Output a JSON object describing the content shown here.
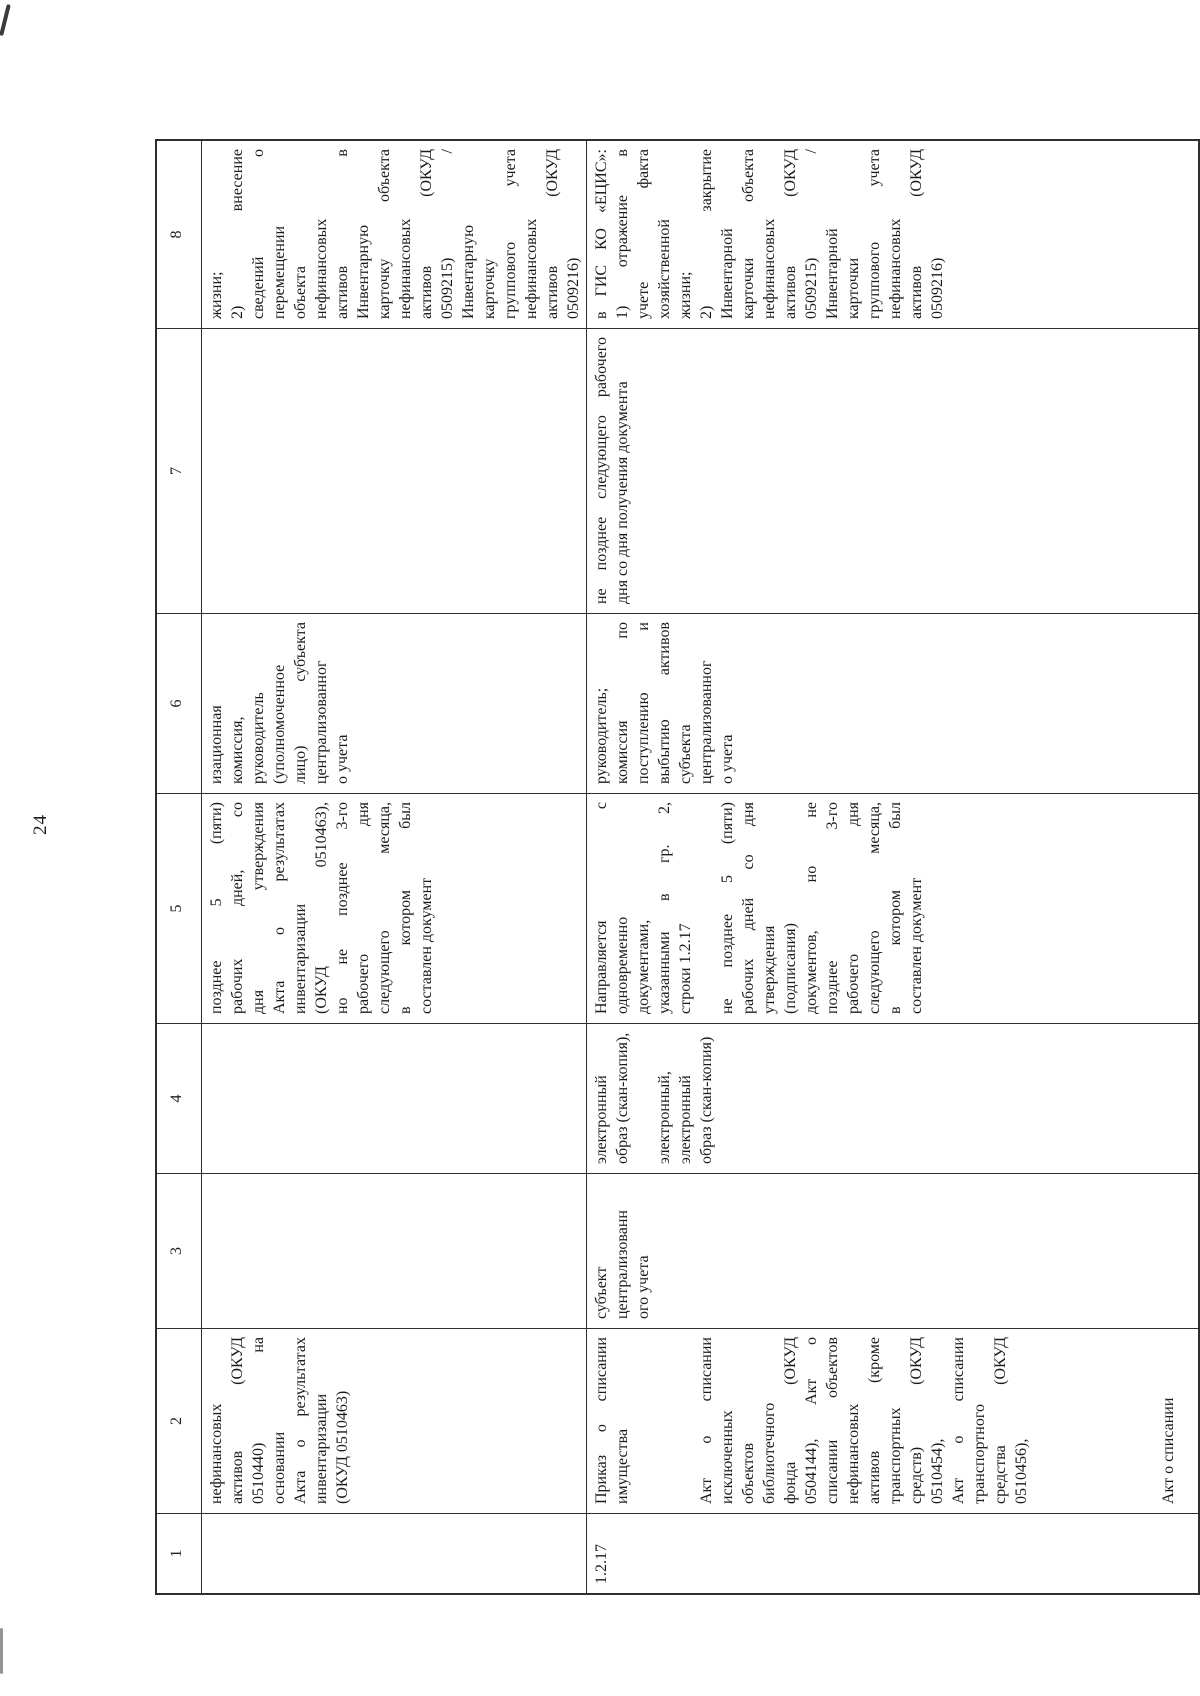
{
  "page": {
    "number": "24"
  },
  "table": {
    "headers": [
      "1",
      "2",
      "3",
      "4",
      "5",
      "6",
      "7",
      "8"
    ],
    "row_a": {
      "c1": [],
      "c2": [
        "нефинансовых",
        "активов (ОКУД",
        "0510440) на",
        "основании",
        "Акта о результатах",
        "инвентаризации",
        "(ОКУД 0510463)"
      ],
      "c3": [],
      "c4": [],
      "c5": [
        "позднее 5 (пяти)",
        "рабочих дней, со",
        "дня утверждения",
        "Акта о результатах",
        "инвентаризации",
        "(ОКУД 0510463),",
        "но не позднее 3-го",
        "рабочего дня",
        "следующего месяца,",
        "в котором был",
        "составлен документ"
      ],
      "c6": [
        "изационная",
        "комиссия,",
        "руководитель",
        "(уполномоченное",
        "лицо) субъекта",
        "централизованног",
        "о учета"
      ],
      "c7": [],
      "c8": [
        "жизни;",
        "2) внесение",
        "сведений о",
        "перемещении",
        "объекта",
        "нефинансовых",
        "активов в",
        "Инвентарную",
        "карточку объекта",
        "нефинансовых",
        "активов (ОКУД",
        "0509215) /",
        "Инвентарную",
        "карточку",
        "группового учета",
        "нефинансовых",
        "активов (ОКУД",
        "0509216)"
      ]
    },
    "row_b": {
      "c1": [
        "1.2.17"
      ],
      "c2": [
        "Приказ о списании",
        "имущества",
        "",
        "",
        "",
        "Акт о списании",
        "исключенных",
        "объектов",
        "библиотечного",
        "фонда (ОКУД",
        "0504144), Акт о",
        "списании объектов",
        "нефинансовых",
        "активов (кроме",
        "транспортных",
        "средств) (ОКУД",
        "0510454),",
        "Акт о списании",
        "транспортного",
        "средства (ОКУД",
        "0510456),",
        "",
        "",
        "",
        "",
        "",
        "",
        "Акт о списании"
      ],
      "c3": [
        "субъект",
        "централизованн",
        "ого учета"
      ],
      "c4": [
        "электронный",
        "образ (скан-копия),",
        "",
        "электронный,",
        "электронный",
        "образ (скан-копия)"
      ],
      "c5": [
        "Направляется с",
        "одновременно",
        "документами,",
        "указанными в гр. 2,",
        "строки 1.2.17",
        "",
        "не позднее 5 (пяти)",
        "рабочих дней со дня",
        "утверждения",
        "(подписания)",
        "документов, но не",
        "позднее 3-го",
        "рабочего дня",
        "следующего месяца,",
        "в котором был",
        "составлен документ"
      ],
      "c6": [
        "руководитель;",
        "комиссия по",
        "поступлению и",
        "выбытию активов",
        "субъекта",
        "централизованног",
        "о учета"
      ],
      "c7": [
        "не позднее следующего рабочего",
        "дня со дня получения документа"
      ],
      "c8": [
        "в ГИС КО «ЕЦИС»:",
        "1) отражение в",
        "учете факта",
        "хозяйственной",
        "жизни;",
        "2) закрытие",
        "Инвентарной",
        "карточки объекта",
        "нефинансовых",
        "активов (ОКУД",
        "0509215) /",
        "Инвентарной",
        "карточки",
        "группового учета",
        "нефинансовых",
        "активов (ОКУД",
        "0509216)"
      ]
    }
  }
}
